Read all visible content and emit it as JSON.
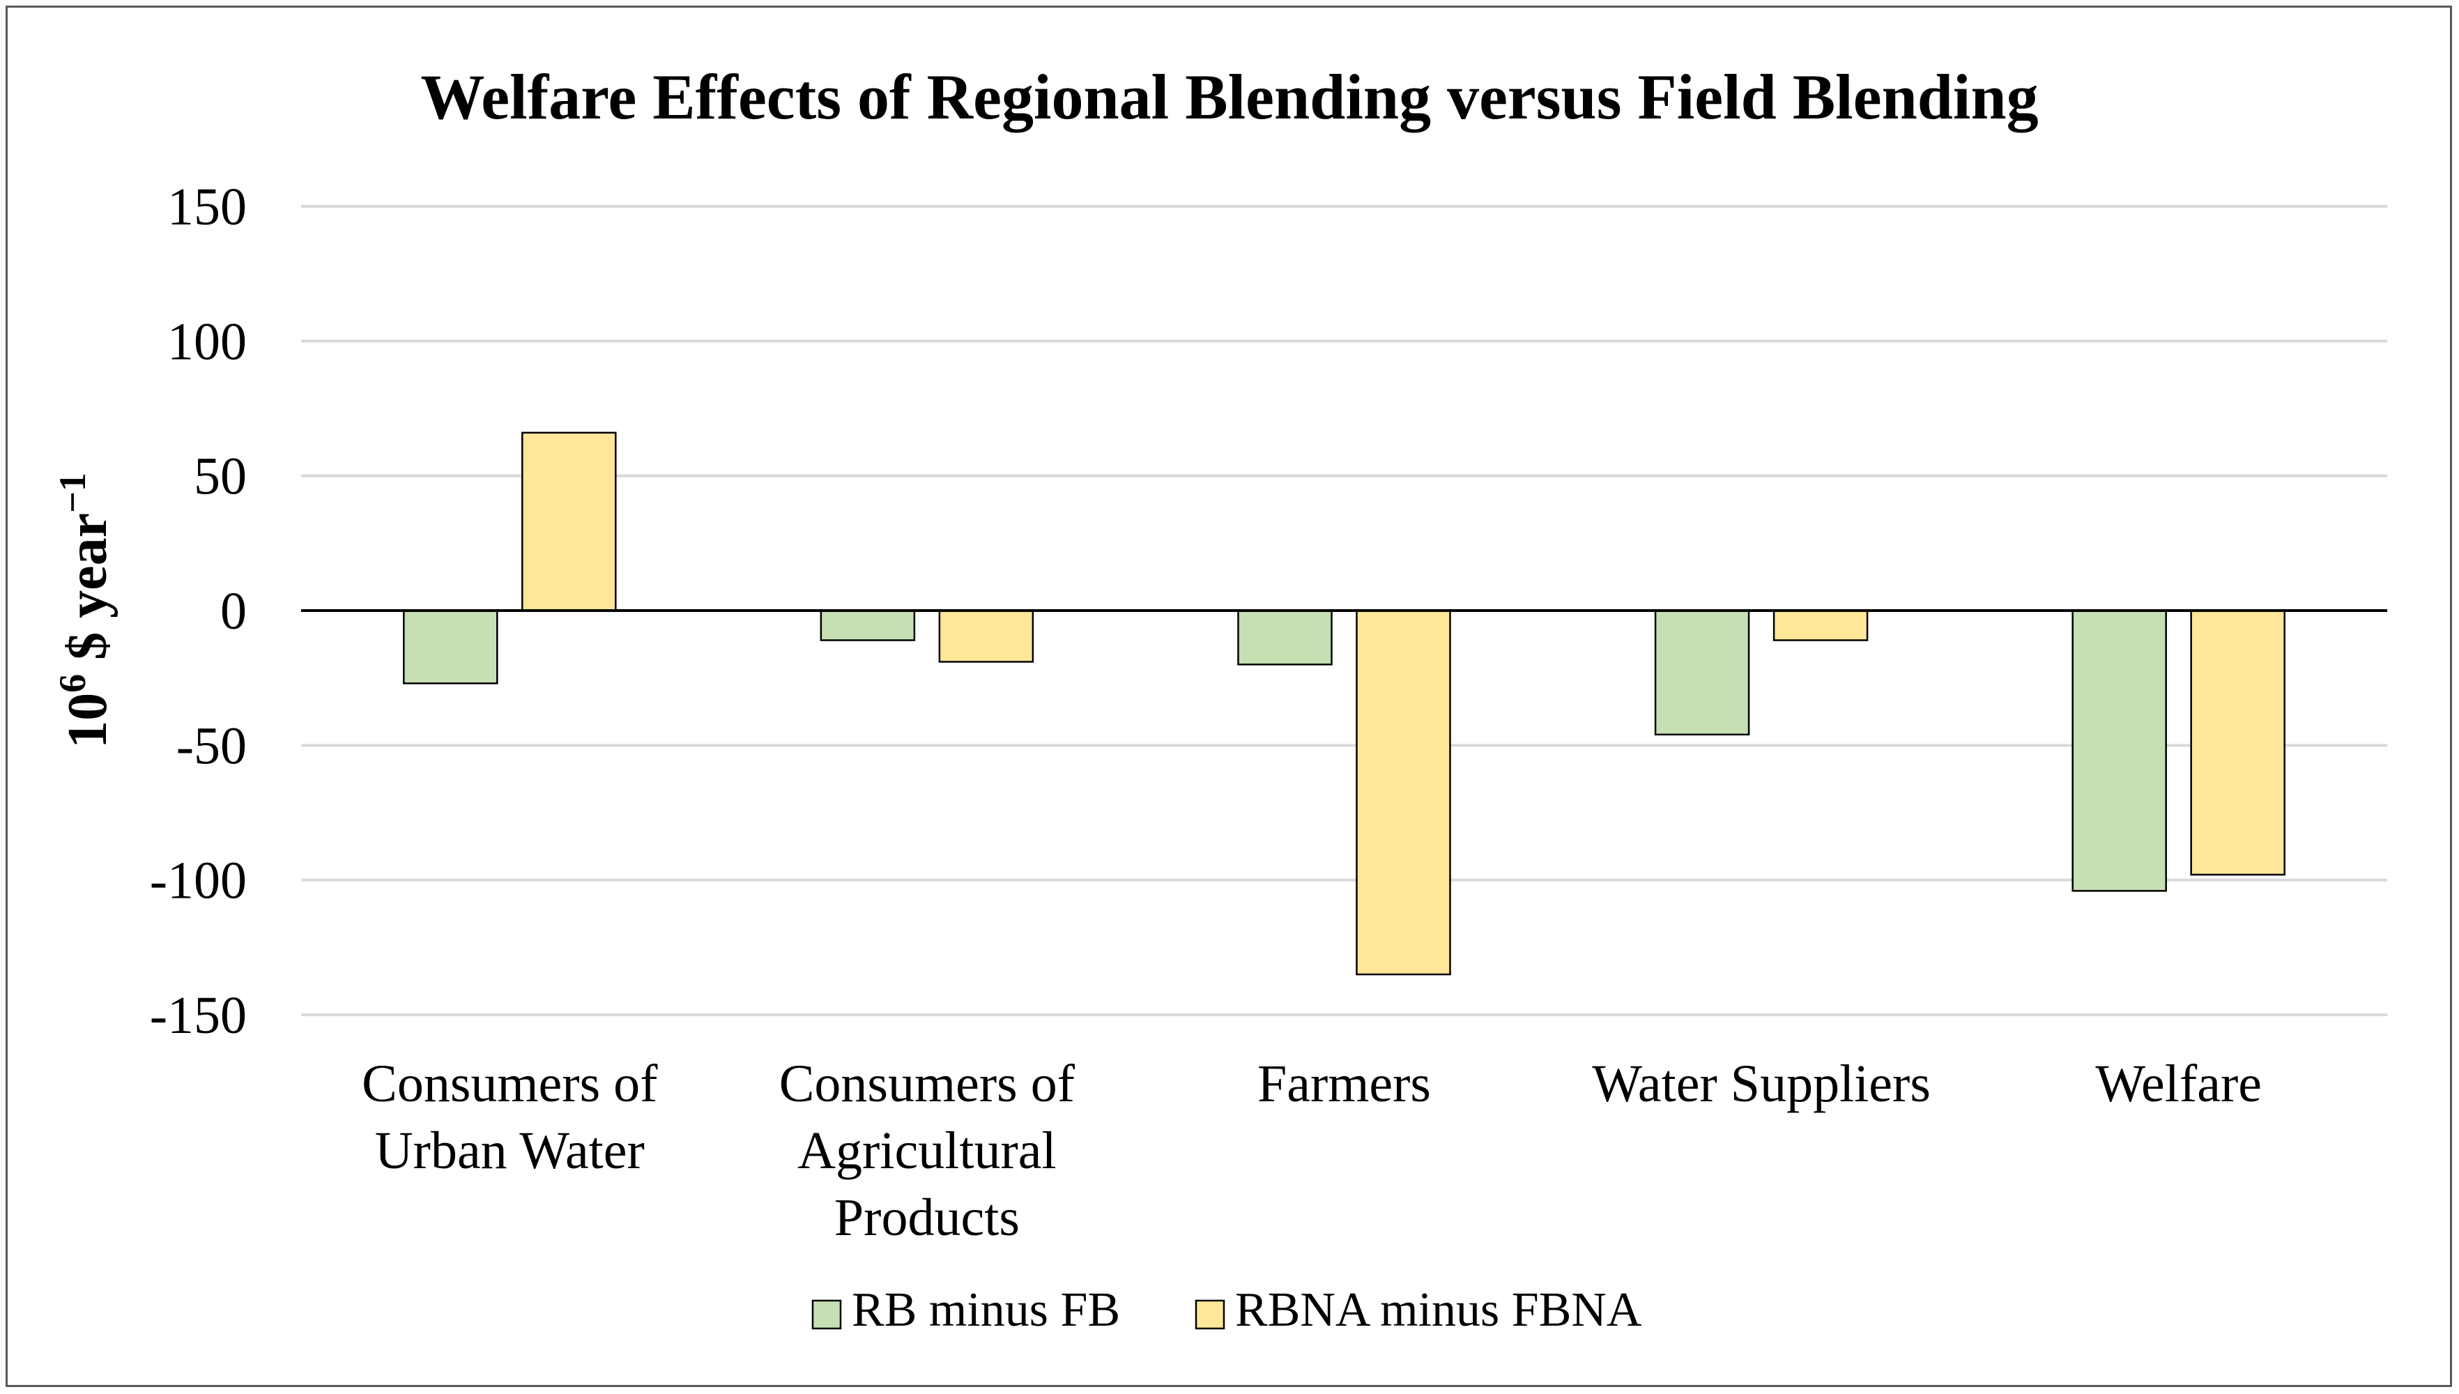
{
  "chart_data": {
    "type": "bar",
    "title": "Welfare Effects of Regional Blending versus Field Blending",
    "xlabel": "",
    "ylabel": {
      "base": "10",
      "exponent": "6",
      "unit": "$ year",
      "unit_exponent": "−1"
    },
    "ylim": [
      -150,
      150
    ],
    "yticks": [
      150,
      100,
      50,
      0,
      -50,
      -100,
      -150
    ],
    "ytick_labels": [
      "150",
      "100",
      "50",
      "0",
      "-50",
      "-100",
      "-150"
    ],
    "grid": true,
    "legend_position": "bottom-center",
    "categories": [
      [
        "Consumers of",
        "Urban Water"
      ],
      [
        "Consumers of",
        "Agricultural",
        "Products"
      ],
      [
        "Farmers"
      ],
      [
        "Water Suppliers"
      ],
      [
        "Welfare"
      ]
    ],
    "series": [
      {
        "name": "RB minus FB",
        "color": "#c6e0b4",
        "values": [
          -27,
          -11,
          -20,
          -46,
          -104
        ]
      },
      {
        "name": "RBNA minus FBNA",
        "color": "#ffe699",
        "values": [
          66,
          -19,
          -135,
          -11,
          -98
        ]
      }
    ],
    "colors": {
      "grid": "#d9d9d9",
      "zero_line": "#000000",
      "bar_stroke": "#000000",
      "frame": "#595959"
    }
  }
}
